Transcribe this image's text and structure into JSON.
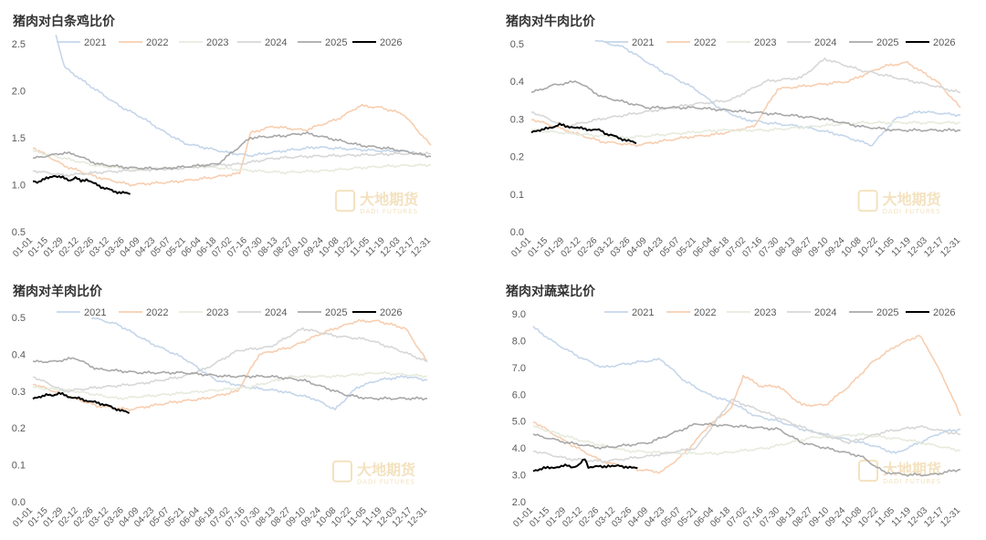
{
  "colors": {
    "2021": "#c5d6ea",
    "2022": "#f7ceb0",
    "2023": "#e6ebdd",
    "2024": "#d7d7d7",
    "2025": "#a8a8a8",
    "2026": "#000000"
  },
  "watermark": {
    "cn": "大地期货",
    "en": "DADI FUTURES"
  },
  "chart_data": [
    {
      "type": "line",
      "title": "猪肉对白条鸡比价",
      "ylim": [
        0.5,
        2.5
      ],
      "yticks": [
        "0.5",
        "1.0",
        "1.5",
        "2.0",
        "2.5"
      ],
      "legend": [
        "2021",
        "2022",
        "2023",
        "2024",
        "2025",
        "2026"
      ],
      "legend_position": "top",
      "x_ticks": [
        "01-01",
        "01-15",
        "01-29",
        "02-12",
        "02-26",
        "03-12",
        "03-26",
        "04-09",
        "04-23",
        "05-07",
        "05-21",
        "06-04",
        "06-18",
        "07-02",
        "07-16",
        "07-30",
        "08-13",
        "08-27",
        "09-10",
        "09-24",
        "10-08",
        "10-22",
        "11-05",
        "11-19",
        "12-03",
        "12-17",
        "12-31"
      ],
      "series": [
        {
          "name": "2021",
          "x": [
            22,
            30,
            45,
            60,
            80,
            100,
            120,
            140,
            160,
            180,
            200,
            230,
            260,
            290,
            320,
            350
          ],
          "y": [
            2.6,
            2.25,
            2.12,
            2.0,
            1.84,
            1.72,
            1.57,
            1.44,
            1.39,
            1.34,
            1.31,
            1.36,
            1.4,
            1.38,
            1.36,
            1.35
          ]
        },
        {
          "name": "2022",
          "x": [
            1,
            30,
            60,
            90,
            130,
            160,
            190,
            200,
            220,
            250,
            280,
            300,
            320,
            340,
            355,
            365
          ],
          "y": [
            1.4,
            1.2,
            1.08,
            1.0,
            1.03,
            1.07,
            1.12,
            1.55,
            1.62,
            1.58,
            1.7,
            1.84,
            1.82,
            1.75,
            1.55,
            1.42
          ]
        },
        {
          "name": "2023",
          "x": [
            1,
            30,
            60,
            100,
            150,
            200,
            230,
            270,
            300,
            330,
            365
          ],
          "y": [
            1.36,
            1.28,
            1.2,
            1.16,
            1.2,
            1.15,
            1.13,
            1.15,
            1.18,
            1.2,
            1.21
          ]
        },
        {
          "name": "2024",
          "x": [
            1,
            30,
            60,
            100,
            130,
            160,
            190,
            220,
            250,
            280,
            310,
            340,
            365
          ],
          "y": [
            1.15,
            1.1,
            1.13,
            1.16,
            1.17,
            1.2,
            1.22,
            1.28,
            1.3,
            1.31,
            1.32,
            1.33,
            1.33
          ]
        },
        {
          "name": "2025",
          "x": [
            1,
            30,
            40,
            60,
            90,
            120,
            150,
            170,
            200,
            230,
            250,
            270,
            300,
            330,
            365
          ],
          "y": [
            1.28,
            1.34,
            1.32,
            1.22,
            1.18,
            1.17,
            1.2,
            1.22,
            1.5,
            1.52,
            1.55,
            1.5,
            1.42,
            1.38,
            1.3
          ]
        },
        {
          "name": "2026",
          "x": [
            1,
            5,
            10,
            15,
            20,
            25,
            30,
            35,
            40,
            45,
            50,
            55,
            60,
            65,
            70,
            75,
            80,
            85,
            90
          ],
          "y": [
            1.04,
            1.03,
            1.05,
            1.07,
            1.1,
            1.08,
            1.07,
            1.05,
            1.07,
            1.04,
            1.06,
            1.02,
            1.0,
            0.97,
            0.95,
            0.93,
            0.92,
            0.91,
            0.9
          ]
        }
      ]
    },
    {
      "type": "line",
      "title": "猪肉对牛肉比价",
      "ylim": [
        0,
        0.5
      ],
      "yticks": [
        "0.0",
        "0.1",
        "0.2",
        "0.3",
        "0.4",
        "0.5"
      ],
      "legend": [
        "2021",
        "2022",
        "2023",
        "2024",
        "2025",
        "2026"
      ],
      "legend_position": "top",
      "x_ticks": [
        "01-01",
        "01-15",
        "01-29",
        "02-12",
        "02-26",
        "03-12",
        "03-26",
        "04-09",
        "04-23",
        "05-07",
        "05-21",
        "06-04",
        "06-18",
        "07-02",
        "07-16",
        "07-30",
        "08-13",
        "08-27",
        "09-10",
        "09-24",
        "10-08",
        "10-22",
        "11-05",
        "11-19",
        "12-03",
        "12-17",
        "12-31"
      ],
      "series": [
        {
          "name": "2021",
          "x": [
            55,
            80,
            110,
            140,
            160,
            180,
            200,
            230,
            260,
            290,
            310,
            330,
            365
          ],
          "y": [
            0.51,
            0.49,
            0.43,
            0.38,
            0.33,
            0.3,
            0.29,
            0.28,
            0.26,
            0.23,
            0.3,
            0.32,
            0.31
          ]
        },
        {
          "name": "2022",
          "x": [
            1,
            30,
            60,
            90,
            130,
            160,
            190,
            210,
            240,
            270,
            300,
            320,
            345,
            365
          ],
          "y": [
            0.3,
            0.27,
            0.24,
            0.23,
            0.25,
            0.26,
            0.28,
            0.38,
            0.39,
            0.4,
            0.44,
            0.45,
            0.4,
            0.33
          ]
        },
        {
          "name": "2023",
          "x": [
            1,
            40,
            80,
            120,
            160,
            200,
            240,
            280,
            320,
            365
          ],
          "y": [
            0.27,
            0.26,
            0.25,
            0.26,
            0.27,
            0.27,
            0.28,
            0.29,
            0.29,
            0.29
          ]
        },
        {
          "name": "2024",
          "x": [
            1,
            30,
            60,
            100,
            140,
            170,
            200,
            230,
            250,
            280,
            310,
            340,
            365
          ],
          "y": [
            0.32,
            0.28,
            0.3,
            0.32,
            0.34,
            0.35,
            0.4,
            0.41,
            0.46,
            0.43,
            0.41,
            0.39,
            0.37
          ]
        },
        {
          "name": "2025",
          "x": [
            1,
            20,
            40,
            60,
            100,
            140,
            180,
            220,
            250,
            280,
            310,
            340,
            365
          ],
          "y": [
            0.37,
            0.39,
            0.4,
            0.36,
            0.33,
            0.33,
            0.32,
            0.31,
            0.3,
            0.28,
            0.27,
            0.27,
            0.27
          ]
        },
        {
          "name": "2026",
          "x": [
            1,
            5,
            10,
            15,
            20,
            25,
            30,
            35,
            40,
            45,
            50,
            55,
            60,
            65,
            70,
            75,
            80,
            85,
            90
          ],
          "y": [
            0.265,
            0.27,
            0.27,
            0.275,
            0.28,
            0.285,
            0.28,
            0.28,
            0.275,
            0.275,
            0.272,
            0.27,
            0.27,
            0.26,
            0.255,
            0.25,
            0.245,
            0.24,
            0.235
          ]
        }
      ]
    },
    {
      "type": "line",
      "title": "猪肉对羊肉比价",
      "ylim": [
        0,
        0.5
      ],
      "yticks": [
        "0.0",
        "0.1",
        "0.2",
        "0.3",
        "0.4",
        "0.5"
      ],
      "legend": [
        "2021",
        "2022",
        "2023",
        "2024",
        "2025",
        "2026"
      ],
      "legend_position": "top",
      "x_ticks": [
        "01-01",
        "01-15",
        "01-29",
        "02-12",
        "02-26",
        "03-12",
        "03-26",
        "04-09",
        "04-23",
        "05-07",
        "05-21",
        "06-04",
        "06-18",
        "07-02",
        "07-16",
        "07-30",
        "08-13",
        "08-27",
        "09-10",
        "09-24",
        "10-08",
        "10-22",
        "11-05",
        "11-19",
        "12-03",
        "12-17",
        "12-31"
      ],
      "series": [
        {
          "name": "2021",
          "x": [
            55,
            80,
            110,
            140,
            170,
            200,
            230,
            260,
            280,
            300,
            320,
            345,
            365
          ],
          "y": [
            0.5,
            0.48,
            0.43,
            0.39,
            0.33,
            0.31,
            0.3,
            0.28,
            0.25,
            0.31,
            0.33,
            0.34,
            0.33
          ]
        },
        {
          "name": "2022",
          "x": [
            1,
            30,
            60,
            90,
            130,
            160,
            190,
            210,
            240,
            270,
            300,
            320,
            345,
            365
          ],
          "y": [
            0.32,
            0.29,
            0.26,
            0.25,
            0.27,
            0.28,
            0.3,
            0.4,
            0.42,
            0.46,
            0.49,
            0.49,
            0.47,
            0.38
          ]
        },
        {
          "name": "2023",
          "x": [
            1,
            40,
            80,
            120,
            160,
            200,
            240,
            280,
            320,
            365
          ],
          "y": [
            0.31,
            0.3,
            0.28,
            0.29,
            0.3,
            0.31,
            0.34,
            0.34,
            0.35,
            0.34
          ]
        },
        {
          "name": "2024",
          "x": [
            1,
            30,
            60,
            100,
            140,
            160,
            190,
            220,
            250,
            280,
            310,
            340,
            365
          ],
          "y": [
            0.34,
            0.3,
            0.31,
            0.32,
            0.34,
            0.36,
            0.41,
            0.42,
            0.47,
            0.45,
            0.44,
            0.41,
            0.38
          ]
        },
        {
          "name": "2025",
          "x": [
            1,
            20,
            40,
            60,
            100,
            140,
            180,
            220,
            250,
            270,
            290,
            310,
            340,
            365
          ],
          "y": [
            0.38,
            0.38,
            0.39,
            0.36,
            0.35,
            0.35,
            0.34,
            0.34,
            0.33,
            0.31,
            0.29,
            0.28,
            0.28,
            0.28
          ]
        },
        {
          "name": "2026",
          "x": [
            1,
            5,
            10,
            15,
            20,
            25,
            30,
            35,
            40,
            45,
            50,
            55,
            60,
            65,
            70,
            75,
            80,
            85,
            90
          ],
          "y": [
            0.28,
            0.285,
            0.285,
            0.29,
            0.29,
            0.293,
            0.29,
            0.285,
            0.28,
            0.28,
            0.275,
            0.27,
            0.27,
            0.265,
            0.26,
            0.255,
            0.25,
            0.245,
            0.24
          ]
        }
      ]
    },
    {
      "type": "line",
      "title": "猪肉对蔬菜比价",
      "ylim": [
        2,
        9
      ],
      "yticks": [
        "2.0",
        "3.0",
        "4.0",
        "5.0",
        "6.0",
        "7.0",
        "8.0",
        "9.0"
      ],
      "legend": [
        "2021",
        "2022",
        "2023",
        "2024",
        "2025",
        "2026"
      ],
      "legend_position": "top",
      "x_ticks": [
        "01-01",
        "01-15",
        "01-29",
        "02-12",
        "02-26",
        "03-12",
        "03-26",
        "04-09",
        "04-23",
        "05-07",
        "05-21",
        "06-04",
        "06-18",
        "07-02",
        "07-16",
        "07-30",
        "08-13",
        "08-27",
        "09-10",
        "09-24",
        "10-08",
        "10-22",
        "11-05",
        "11-19",
        "12-03",
        "12-17",
        "12-31"
      ],
      "series": [
        {
          "name": "2021",
          "x": [
            1,
            20,
            40,
            60,
            90,
            110,
            130,
            150,
            170,
            190,
            210,
            230,
            260,
            290,
            310,
            330,
            350,
            365
          ],
          "y": [
            8.5,
            7.9,
            7.4,
            7.0,
            7.2,
            7.3,
            6.5,
            6.0,
            5.7,
            5.2,
            5.0,
            4.7,
            4.4,
            4.1,
            3.8,
            4.2,
            4.6,
            4.7
          ]
        },
        {
          "name": "2022",
          "x": [
            1,
            30,
            60,
            90,
            110,
            130,
            150,
            170,
            180,
            195,
            210,
            230,
            250,
            270,
            290,
            310,
            330,
            340,
            355,
            365
          ],
          "y": [
            5.0,
            4.2,
            3.5,
            3.2,
            3.1,
            3.8,
            4.8,
            5.5,
            6.7,
            6.3,
            6.3,
            5.6,
            5.6,
            6.3,
            7.2,
            7.8,
            8.2,
            7.5,
            6.2,
            5.2
          ]
        },
        {
          "name": "2023",
          "x": [
            1,
            40,
            80,
            120,
            160,
            200,
            240,
            280,
            320,
            365
          ],
          "y": [
            4.8,
            4.3,
            3.9,
            3.8,
            3.8,
            4.0,
            4.4,
            4.5,
            4.3,
            3.9
          ]
        },
        {
          "name": "2024",
          "x": [
            1,
            30,
            60,
            100,
            140,
            170,
            200,
            240,
            270,
            300,
            330,
            365
          ],
          "y": [
            3.9,
            3.6,
            3.5,
            3.7,
            4.0,
            5.8,
            5.3,
            4.6,
            4.2,
            4.6,
            4.8,
            4.5
          ]
        },
        {
          "name": "2025",
          "x": [
            1,
            30,
            60,
            100,
            140,
            180,
            210,
            230,
            260,
            280,
            300,
            320,
            340,
            365
          ],
          "y": [
            4.5,
            4.2,
            4.0,
            4.2,
            4.9,
            4.8,
            4.7,
            4.2,
            3.9,
            3.7,
            3.1,
            3.0,
            3.0,
            3.2
          ]
        },
        {
          "name": "2026",
          "x": [
            1,
            5,
            10,
            15,
            20,
            25,
            30,
            35,
            40,
            45,
            48,
            50,
            55,
            60,
            65,
            70,
            75,
            80,
            85,
            90
          ],
          "y": [
            3.15,
            3.2,
            3.25,
            3.25,
            3.3,
            3.3,
            3.35,
            3.3,
            3.35,
            3.6,
            3.3,
            3.3,
            3.3,
            3.3,
            3.35,
            3.3,
            3.35,
            3.3,
            3.25,
            3.25
          ]
        }
      ]
    }
  ]
}
